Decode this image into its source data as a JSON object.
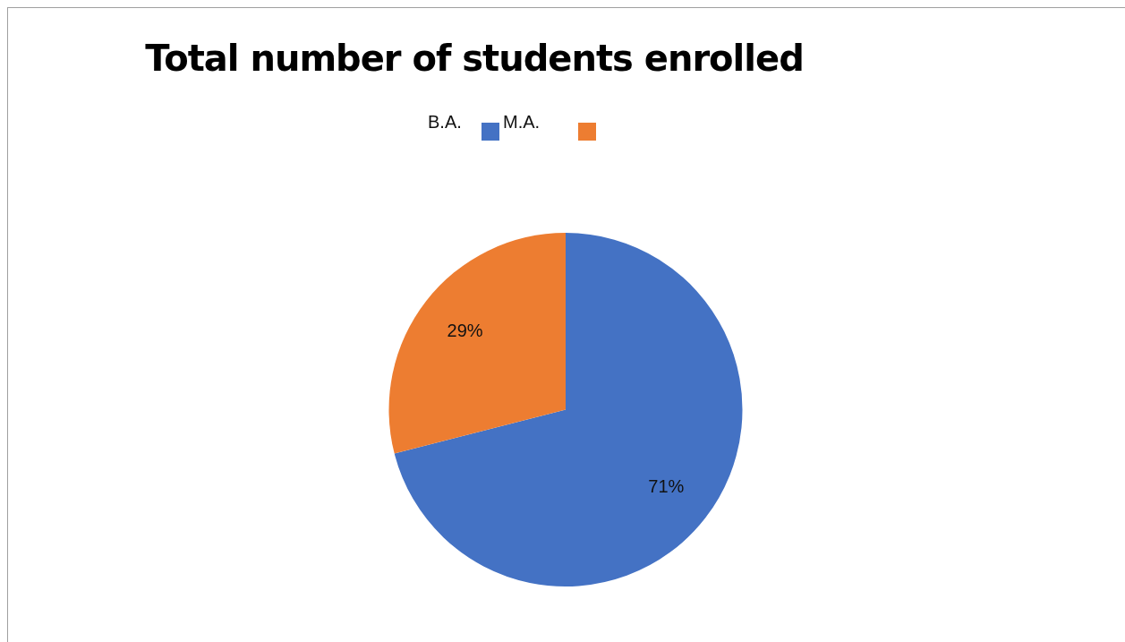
{
  "chart_data": {
    "type": "pie",
    "title": "Total number of students enrolled",
    "categories": [
      "B.A.",
      "M.A."
    ],
    "values": [
      71,
      29
    ],
    "colors": [
      "#4472c4",
      "#ed7d31"
    ],
    "value_labels": [
      "71%",
      "29%"
    ],
    "legend": "top"
  }
}
